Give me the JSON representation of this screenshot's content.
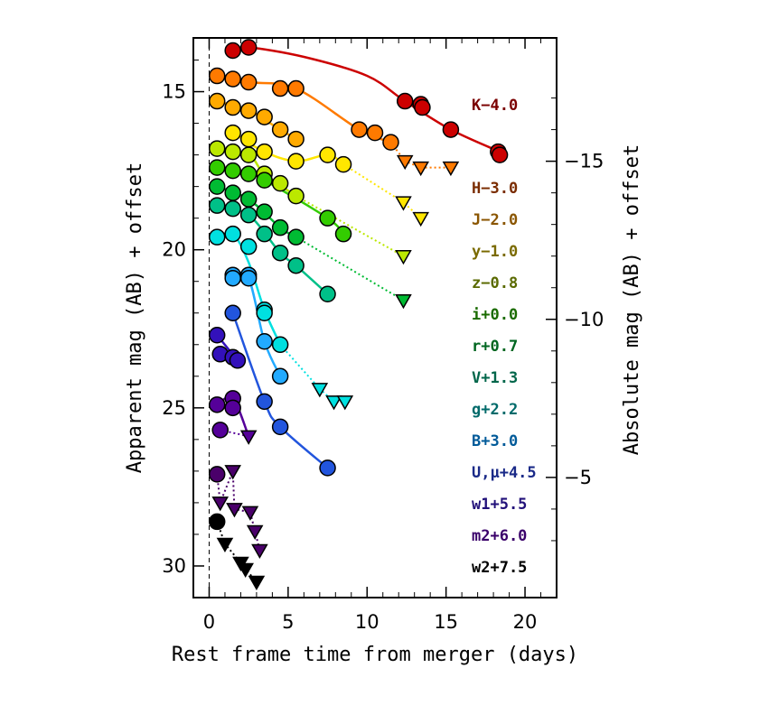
{
  "chart_data": {
    "type": "scatter",
    "xlabel": "Rest frame time from merger (days)",
    "ylabel": "Apparent mag (AB) + offset",
    "ylabel_right": "Absolute mag (AB) + offset",
    "xlim": [
      -1,
      22
    ],
    "ylim": [
      31,
      13.3
    ],
    "x_ticks": [
      0,
      5,
      10,
      15,
      20
    ],
    "y_ticks": [
      15,
      20,
      25,
      30
    ],
    "y_ticks_right": [
      -15,
      -10,
      -5
    ],
    "right_axis_offset": 32.2,
    "merger_line_x": 0,
    "series": [
      {
        "name": "K−4.0",
        "color": "#cc0000",
        "label_color": "#7a0000",
        "detections": [
          [
            1.5,
            13.7
          ],
          [
            2.5,
            13.6
          ],
          [
            12.4,
            15.3
          ],
          [
            13.4,
            15.4
          ],
          [
            13.5,
            15.5
          ],
          [
            15.3,
            16.2
          ],
          [
            18.3,
            16.9
          ],
          [
            18.4,
            17.0
          ]
        ],
        "limits": [],
        "fit": [
          [
            1.5,
            13.7
          ],
          [
            2.5,
            13.6
          ],
          [
            6,
            13.9
          ],
          [
            10,
            14.5
          ],
          [
            12.4,
            15.3
          ],
          [
            15.3,
            16.2
          ],
          [
            18.4,
            16.9
          ]
        ]
      },
      {
        "name": "H−3.0",
        "color": "#ff7a00",
        "label_color": "#7a2c00",
        "detections": [
          [
            0.5,
            14.5
          ],
          [
            1.5,
            14.6
          ],
          [
            2.5,
            14.7
          ],
          [
            4.5,
            14.9
          ],
          [
            5.5,
            14.9
          ],
          [
            9.5,
            16.2
          ],
          [
            10.5,
            16.3
          ],
          [
            11.5,
            16.6
          ]
        ],
        "limits": [
          [
            12.4,
            17.2
          ],
          [
            13.4,
            17.4
          ],
          [
            15.3,
            17.4
          ]
        ],
        "fit": [
          [
            0.5,
            14.5
          ],
          [
            2.5,
            14.7
          ],
          [
            5.5,
            14.9
          ],
          [
            9.5,
            16.2
          ],
          [
            11.5,
            16.6
          ]
        ]
      },
      {
        "name": "J−2.0",
        "color": "#ffaa00",
        "label_color": "#8a5500",
        "detections": [
          [
            0.5,
            15.3
          ],
          [
            1.5,
            15.5
          ],
          [
            2.5,
            15.6
          ],
          [
            3.5,
            15.8
          ],
          [
            4.5,
            16.2
          ],
          [
            5.5,
            16.5
          ]
        ],
        "limits": [],
        "fit": [
          [
            0.5,
            15.3
          ],
          [
            2.5,
            15.6
          ],
          [
            4.5,
            16.2
          ],
          [
            5.5,
            16.5
          ]
        ]
      },
      {
        "name": "y−1.0",
        "color": "#ffe600",
        "label_color": "#7a6a00",
        "detections": [
          [
            1.5,
            16.3
          ],
          [
            2.5,
            16.5
          ],
          [
            3.5,
            16.9
          ],
          [
            5.5,
            17.2
          ],
          [
            7.5,
            17.0
          ],
          [
            8.5,
            17.3
          ]
        ],
        "limits": [
          [
            12.3,
            18.5
          ],
          [
            13.4,
            19.0
          ]
        ],
        "fit": [
          [
            1.5,
            16.3
          ],
          [
            3.5,
            16.9
          ],
          [
            5.5,
            17.2
          ],
          [
            7.5,
            17.0
          ],
          [
            8.5,
            17.3
          ]
        ]
      },
      {
        "name": "z−0.8",
        "color": "#bbe800",
        "label_color": "#5a6a00",
        "detections": [
          [
            0.5,
            16.8
          ],
          [
            1.5,
            16.9
          ],
          [
            2.5,
            17.0
          ],
          [
            3.5,
            17.6
          ],
          [
            4.5,
            17.9
          ],
          [
            5.5,
            18.3
          ]
        ],
        "limits": [
          [
            12.3,
            20.2
          ]
        ],
        "fit": [
          [
            0.5,
            16.8
          ],
          [
            2.5,
            17.0
          ],
          [
            3.5,
            17.6
          ],
          [
            5.5,
            18.3
          ]
        ]
      },
      {
        "name": "i+0.0",
        "color": "#33cc00",
        "label_color": "#1a6b00",
        "detections": [
          [
            0.5,
            17.4
          ],
          [
            1.5,
            17.5
          ],
          [
            2.5,
            17.6
          ],
          [
            3.5,
            17.8
          ],
          [
            7.5,
            19.0
          ],
          [
            8.5,
            19.5
          ]
        ],
        "limits": [],
        "fit": [
          [
            0.5,
            17.4
          ],
          [
            2.5,
            17.6
          ],
          [
            3.5,
            17.8
          ],
          [
            7.5,
            19.0
          ],
          [
            8.5,
            19.5
          ]
        ]
      },
      {
        "name": "r+0.7",
        "color": "#00bb33",
        "label_color": "#006620",
        "detections": [
          [
            0.5,
            18.0
          ],
          [
            1.5,
            18.2
          ],
          [
            2.5,
            18.4
          ],
          [
            3.5,
            18.8
          ],
          [
            4.5,
            19.3
          ],
          [
            5.5,
            19.6
          ]
        ],
        "limits": [
          [
            12.3,
            21.6
          ]
        ],
        "fit": [
          [
            0.5,
            18.0
          ],
          [
            2.5,
            18.4
          ],
          [
            4.5,
            19.3
          ],
          [
            5.5,
            19.6
          ]
        ]
      },
      {
        "name": "V+1.3",
        "color": "#00c088",
        "label_color": "#00664a",
        "detections": [
          [
            0.5,
            18.6
          ],
          [
            1.5,
            18.7
          ],
          [
            2.5,
            18.9
          ],
          [
            3.5,
            19.5
          ],
          [
            4.5,
            20.1
          ],
          [
            5.5,
            20.5
          ],
          [
            7.5,
            21.4
          ]
        ],
        "limits": [],
        "fit": [
          [
            0.5,
            18.6
          ],
          [
            2.5,
            18.9
          ],
          [
            4.5,
            20.1
          ],
          [
            5.5,
            20.5
          ],
          [
            7.5,
            21.4
          ]
        ]
      },
      {
        "name": "g+2.2",
        "color": "#00e0e0",
        "label_color": "#006a6a",
        "detections": [
          [
            0.5,
            19.6
          ],
          [
            1.5,
            19.5
          ],
          [
            2.5,
            19.9
          ],
          [
            3.5,
            21.9
          ],
          [
            3.5,
            22.0
          ],
          [
            4.5,
            23.0
          ]
        ],
        "limits": [
          [
            7.0,
            24.4
          ],
          [
            7.9,
            24.8
          ],
          [
            8.6,
            24.8
          ]
        ],
        "fit": [
          [
            0.5,
            19.6
          ],
          [
            1.5,
            19.5
          ],
          [
            2.5,
            20.4
          ],
          [
            3.5,
            21.9
          ],
          [
            4.5,
            23.0
          ]
        ]
      },
      {
        "name": "B+3.0",
        "color": "#22aaff",
        "label_color": "#005a99",
        "detections": [
          [
            1.5,
            20.8
          ],
          [
            1.5,
            20.9
          ],
          [
            2.5,
            20.8
          ],
          [
            2.5,
            20.9
          ],
          [
            3.5,
            22.9
          ],
          [
            4.5,
            24.0
          ]
        ],
        "limits": [],
        "fit": [
          [
            1.5,
            20.8
          ],
          [
            2.5,
            20.9
          ],
          [
            3.5,
            22.9
          ],
          [
            4.5,
            24.0
          ]
        ]
      },
      {
        "name": "U,μ+4.5",
        "color": "#2255dd",
        "label_color": "#1a2a88",
        "detections": [
          [
            1.5,
            22.0
          ],
          [
            3.5,
            24.8
          ],
          [
            4.5,
            25.6
          ],
          [
            7.5,
            26.9
          ]
        ],
        "limits": [],
        "fit": [
          [
            1.5,
            22.0
          ],
          [
            3.5,
            24.8
          ],
          [
            4.5,
            25.6
          ],
          [
            7.5,
            26.9
          ]
        ]
      },
      {
        "name": "w1+5.5",
        "color": "#3311bb",
        "label_color": "#22117a",
        "detections": [
          [
            0.5,
            22.7
          ],
          [
            0.7,
            23.3
          ],
          [
            1.5,
            23.4
          ],
          [
            1.8,
            23.5
          ]
        ],
        "limits": [],
        "fit": [
          [
            0.5,
            22.7
          ],
          [
            1.8,
            23.5
          ]
        ]
      },
      {
        "name": "m2+6.0",
        "color": "#550099",
        "label_color": "#3a006a",
        "detections": [
          [
            0.5,
            24.9
          ],
          [
            1.5,
            24.7
          ],
          [
            1.5,
            25.0
          ],
          [
            0.7,
            25.7
          ]
        ],
        "limits": [
          [
            2.5,
            25.9
          ]
        ],
        "fit": [
          [
            0.5,
            24.9
          ],
          [
            1.5,
            24.7
          ],
          [
            2.5,
            25.9
          ]
        ]
      },
      {
        "name": "w2+7.5",
        "color": "#4a006a",
        "label_color": "#3a0055",
        "detections": [
          [
            0.5,
            27.1
          ]
        ],
        "limits": [
          [
            0.7,
            28.0
          ],
          [
            1.5,
            27.0
          ],
          [
            1.6,
            28.2
          ],
          [
            2.6,
            28.3
          ],
          [
            2.9,
            28.9
          ],
          [
            3.2,
            29.5
          ]
        ],
        "fit": []
      },
      {
        "name": "w2+7.5",
        "color": "#000000",
        "label_color": "#000000",
        "detections": [
          [
            0.5,
            28.6
          ]
        ],
        "limits": [
          [
            1.0,
            29.3
          ],
          [
            2.0,
            29.9
          ],
          [
            2.3,
            30.1
          ],
          [
            3.0,
            30.5
          ]
        ],
        "fit": []
      }
    ]
  }
}
